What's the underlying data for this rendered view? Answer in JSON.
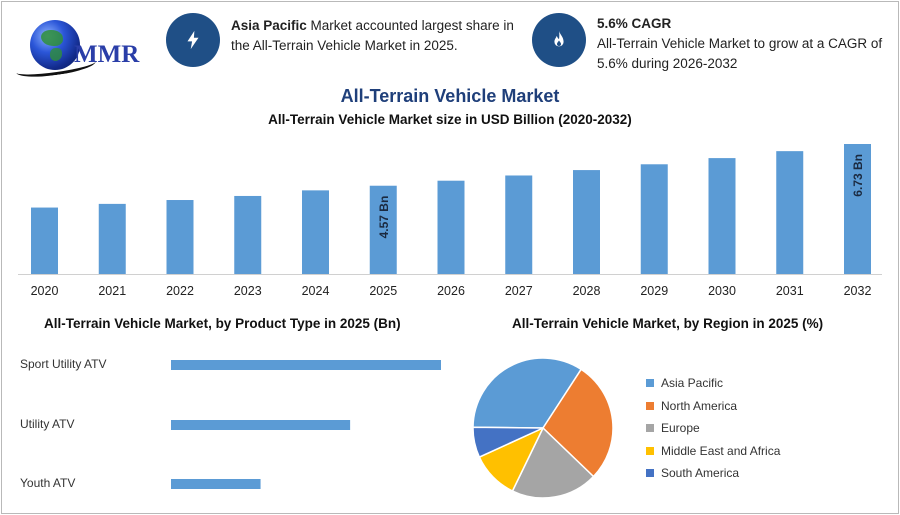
{
  "brand": {
    "logo_text": "MMR"
  },
  "highlights": [
    {
      "icon": "lightning-icon",
      "bold": "Asia Pacific",
      "text": " Market accounted largest share in the All-Terrain Vehicle Market in 2025."
    },
    {
      "icon": "flame-icon",
      "bold": "5.6% CAGR",
      "text": "All-Terrain Vehicle Market to grow at a CAGR of 5.6% during 2026-2032"
    }
  ],
  "header": {
    "title": "All-Terrain Vehicle Market",
    "subtitle": "All-Terrain Vehicle Market size in USD Billion (2020-2032)"
  },
  "colors": {
    "bar": "#5b9bd5",
    "title": "#1f3f7a",
    "icon_bg": "#1f4f86"
  },
  "chart_data": [
    {
      "type": "bar",
      "title": "All-Terrain Vehicle Market size in USD Billion (2020-2032)",
      "categories": [
        "2020",
        "2021",
        "2022",
        "2023",
        "2024",
        "2025",
        "2026",
        "2027",
        "2028",
        "2029",
        "2030",
        "2031",
        "2032"
      ],
      "values": [
        3.44,
        3.63,
        3.83,
        4.04,
        4.33,
        4.57,
        4.83,
        5.1,
        5.38,
        5.68,
        6.0,
        6.36,
        6.73
      ],
      "data_labels": {
        "2025": "4.57 Bn",
        "2032": "6.73 Bn"
      },
      "ylim": [
        0,
        6.73
      ],
      "grid": false
    },
    {
      "type": "bar",
      "orientation": "horizontal",
      "title": "All-Terrain Vehicle Market, by Product Type in 2025 (Bn)",
      "categories": [
        "Sport Utility ATV",
        "Utility ATV",
        "Youth ATV"
      ],
      "values": [
        2.05,
        1.36,
        0.68
      ],
      "grid": false
    },
    {
      "type": "pie",
      "title": "All-Terrain Vehicle Market, by Region in 2025 (%)",
      "categories": [
        "Asia Pacific",
        "North America",
        "Europe",
        "Middle East and Africa",
        "South America"
      ],
      "values": [
        34,
        28,
        20,
        11,
        7
      ],
      "colors": [
        "#5b9bd5",
        "#ed7d31",
        "#a5a5a5",
        "#ffc000",
        "#4472c4"
      ],
      "legend": "right"
    }
  ]
}
